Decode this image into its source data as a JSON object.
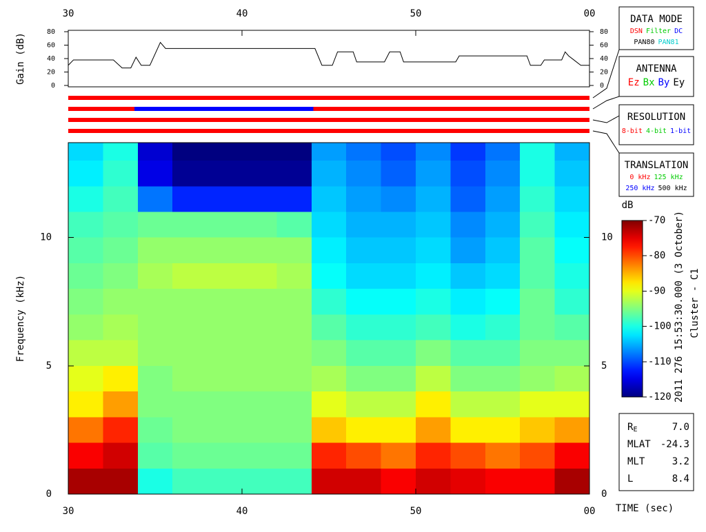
{
  "chart_data": [
    {
      "type": "line",
      "ylabel": "Gain (dB)",
      "color": "#000000",
      "x": [
        30,
        30.3,
        32.6,
        33.1,
        33.6,
        33.9,
        34.2,
        34.7,
        35.3,
        35.6,
        44.2,
        44.6,
        45.2,
        45.5,
        46.4,
        46.6,
        48.2,
        48.5,
        49.1,
        49.3,
        52.3,
        52.5,
        56.4,
        56.6,
        57.2,
        57.4,
        58.4,
        58.6,
        58.8,
        59.1,
        59.5,
        60
      ],
      "values": [
        30,
        38,
        38,
        26,
        26,
        42,
        30,
        30,
        64,
        55,
        55,
        30,
        30,
        50,
        50,
        35,
        35,
        50,
        50,
        35,
        35,
        44,
        44,
        30,
        30,
        38,
        38,
        50,
        44,
        38,
        30,
        30
      ],
      "xlim": [
        30,
        60
      ],
      "xticks": [
        30,
        40,
        50,
        {
          "value": 60,
          "label": "00"
        }
      ],
      "ylim": [
        0,
        80
      ],
      "yticks": [
        0,
        20,
        40,
        60,
        80
      ]
    },
    {
      "type": "status",
      "bars": [
        {
          "segments": [
            {
              "start": 30,
              "end": 60,
              "color": "#ff0000"
            }
          ]
        },
        {
          "segments": [
            {
              "start": 30,
              "end": 33.8,
              "color": "#ff0000"
            },
            {
              "start": 33.8,
              "end": 44.1,
              "color": "#0000ff"
            },
            {
              "start": 44.1,
              "end": 60,
              "color": "#ff0000"
            }
          ]
        },
        {
          "segments": [
            {
              "start": 30,
              "end": 60,
              "color": "#ff0000"
            }
          ]
        },
        {
          "segments": [
            {
              "start": 30,
              "end": 60,
              "color": "#ff0000"
            }
          ]
        }
      ]
    },
    {
      "type": "heatmap",
      "ylabel": "Frequency (kHz)",
      "xlabel": "TIME (sec)",
      "x_bins": [
        30,
        32,
        34,
        36,
        38,
        40,
        42,
        44,
        46,
        48,
        50,
        52,
        54,
        56,
        58,
        60
      ],
      "y_bins": [
        0,
        1,
        2,
        3,
        4,
        5,
        6,
        7,
        8,
        9,
        10,
        11,
        12,
        13,
        13.7
      ],
      "z": [
        [
          -72,
          -72,
          -100,
          -98,
          -98,
          -98,
          -98,
          -74,
          -74,
          -76,
          -74,
          -75,
          -76,
          -76,
          -72
        ],
        [
          -76,
          -74,
          -97,
          -96,
          -96,
          -96,
          -96,
          -78,
          -80,
          -82,
          -78,
          -80,
          -82,
          -80,
          -76
        ],
        [
          -82,
          -78,
          -96,
          -95,
          -95,
          -95,
          -95,
          -86,
          -88,
          -88,
          -84,
          -88,
          -88,
          -86,
          -84
        ],
        [
          -88,
          -84,
          -95,
          -95,
          -95,
          -95,
          -95,
          -90,
          -92,
          -92,
          -88,
          -92,
          -92,
          -90,
          -90
        ],
        [
          -90,
          -88,
          -95,
          -94,
          -94,
          -94,
          -94,
          -93,
          -95,
          -95,
          -92,
          -95,
          -95,
          -94,
          -93
        ],
        [
          -92,
          -92,
          -94,
          -94,
          -94,
          -94,
          -94,
          -95,
          -97,
          -97,
          -95,
          -97,
          -97,
          -95,
          -95
        ],
        [
          -94,
          -93,
          -94,
          -94,
          -94,
          -94,
          -94,
          -97,
          -99,
          -99,
          -98,
          -100,
          -99,
          -96,
          -97
        ],
        [
          -95,
          -94,
          -94,
          -94,
          -94,
          -94,
          -94,
          -99,
          -101,
          -101,
          -100,
          -102,
          -101,
          -96,
          -99
        ],
        [
          -96,
          -95,
          -93,
          -92,
          -92,
          -92,
          -93,
          -101,
          -103,
          -103,
          -102,
          -104,
          -103,
          -97,
          -100
        ],
        [
          -97,
          -96,
          -94,
          -94,
          -94,
          -94,
          -94,
          -102,
          -104,
          -104,
          -103,
          -106,
          -104,
          -97,
          -101
        ],
        [
          -98,
          -97,
          -96,
          -96,
          -96,
          -96,
          -97,
          -103,
          -105,
          -105,
          -104,
          -107,
          -105,
          -98,
          -102
        ],
        [
          -100,
          -98,
          -108,
          -112,
          -112,
          -112,
          -112,
          -104,
          -106,
          -107,
          -105,
          -109,
          -106,
          -99,
          -103
        ],
        [
          -102,
          -99,
          -115,
          -119,
          -119,
          -119,
          -119,
          -105,
          -107,
          -109,
          -106,
          -110,
          -107,
          -100,
          -104
        ],
        [
          -103,
          -100,
          -116,
          -120,
          -120,
          -120,
          -120,
          -106,
          -108,
          -110,
          -107,
          -111,
          -108,
          -100,
          -105
        ]
      ],
      "xlim": [
        30,
        60
      ],
      "xticks": [
        30,
        40,
        50,
        {
          "value": 60,
          "label": "00"
        }
      ],
      "ylim": [
        0,
        13.7
      ],
      "yticks": [
        0,
        5,
        10
      ],
      "colormap": "jet",
      "zlim": [
        -120,
        -70
      ],
      "colorbar": {
        "label": "dB",
        "ticks": [
          -70,
          -80,
          -90,
          -100,
          -110,
          -120
        ]
      }
    }
  ],
  "legend_boxes": [
    {
      "title": "DATA MODE",
      "rows": [
        [
          {
            "text": "DSN",
            "color": "#ff0000"
          },
          {
            "text": "Filter",
            "color": "#00cc00"
          },
          {
            "text": "DC",
            "color": "#0000ff"
          }
        ],
        [
          {
            "text": "PAN80",
            "color": "#000000"
          },
          {
            "text": "PAN81",
            "color": "#00cccc"
          }
        ]
      ]
    },
    {
      "title": "ANTENNA",
      "rows": [
        [
          {
            "text": "Ez",
            "color": "#ff0000"
          },
          {
            "text": "Bx",
            "color": "#00cc00"
          },
          {
            "text": "By",
            "color": "#0000ff"
          },
          {
            "text": "Ey",
            "color": "#000000"
          }
        ]
      ]
    },
    {
      "title": "RESOLUTION",
      "rows": [
        [
          {
            "text": "8-bit",
            "color": "#ff0000"
          },
          {
            "text": "4-bit",
            "color": "#00cc00"
          },
          {
            "text": "1-bit",
            "color": "#0000ff"
          }
        ]
      ]
    },
    {
      "title": "TRANSLATION",
      "rows": [
        [
          {
            "text": "0 kHz",
            "color": "#ff0000"
          },
          {
            "text": "125 kHz",
            "color": "#00cc00"
          }
        ],
        [
          {
            "text": "250 kHz",
            "color": "#0000ff"
          },
          {
            "text": "500 kHz",
            "color": "#000000"
          }
        ]
      ]
    }
  ],
  "caption": [
    "2011 276 15:53:30.000 (3 October)",
    "Cluster - C1"
  ],
  "orbit": [
    {
      "label": "R",
      "sub": "E",
      "value": "7.0"
    },
    {
      "label": "MLAT",
      "value": "-24.3"
    },
    {
      "label": "MLT",
      "value": "3.2"
    },
    {
      "label": "L",
      "value": "8.4"
    }
  ]
}
